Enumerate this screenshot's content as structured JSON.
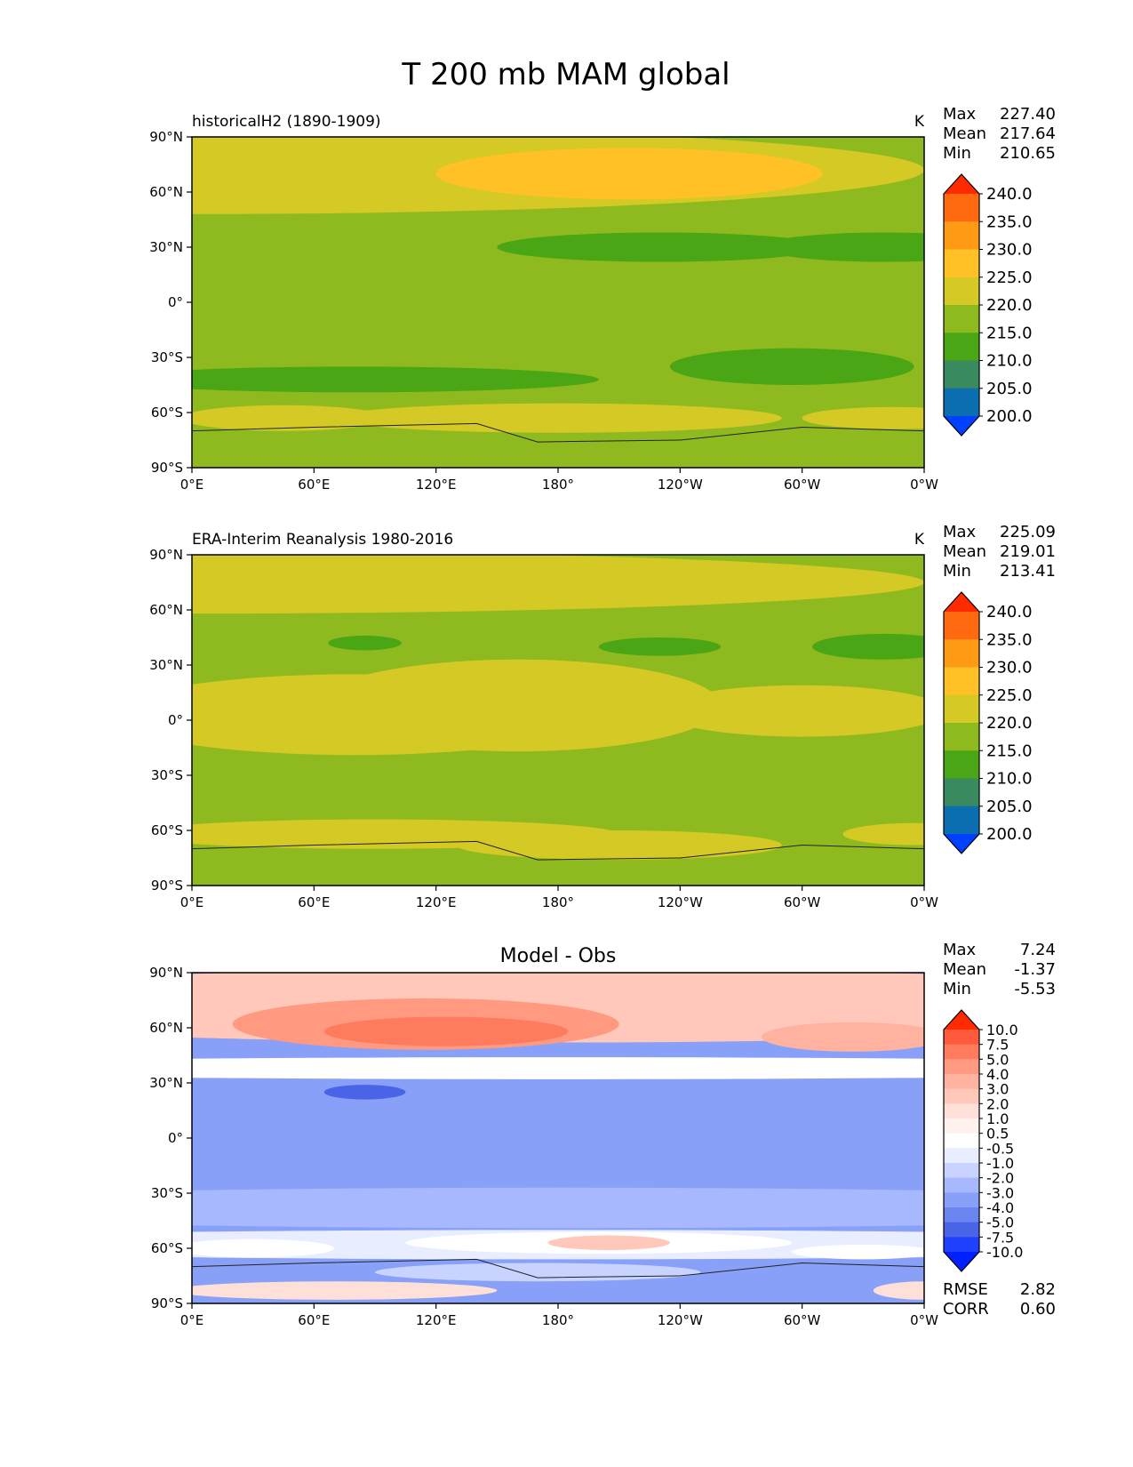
{
  "figure": {
    "title": "T 200 mb MAM global"
  },
  "chart_data": [
    {
      "type": "heatmap",
      "name": "model",
      "title_left": "historicalH2 (1890-1909)",
      "title_center": "",
      "units": "K",
      "stats": [
        {
          "label": "Max",
          "value": "227.40"
        },
        {
          "label": "Mean",
          "value": "217.64"
        },
        {
          "label": "Min",
          "value": "210.65"
        }
      ],
      "extra_stats": [],
      "xticks": [
        "0°E",
        "60°E",
        "120°E",
        "180°",
        "120°W",
        "60°W",
        "0°W"
      ],
      "yticks": [
        "90°N",
        "60°N",
        "30°N",
        "0°",
        "30°S",
        "60°S",
        "90°S"
      ],
      "xlim": [
        0,
        360
      ],
      "ylim": [
        -90,
        90
      ],
      "levels": [
        "240.0",
        "235.0",
        "230.0",
        "225.0",
        "220.0",
        "215.0",
        "210.0",
        "205.0",
        "200.0"
      ],
      "colors": [
        "#ff2a00",
        "#ff6a10",
        "#ff9a15",
        "#ffc125",
        "#d4c925",
        "#8fba1f",
        "#4aa614",
        "#3a8a60",
        "#0a6eb0",
        "#0040ff"
      ],
      "background_class": 5,
      "blobs": [
        {
          "lon": 0,
          "lat": 72,
          "rlon": 360,
          "rlat": 24,
          "c": 4
        },
        {
          "lon": 215,
          "lat": 70,
          "rlon": 95,
          "rlat": 14,
          "c": 3
        },
        {
          "lon": 230,
          "lat": 30,
          "rlon": 80,
          "rlat": 8,
          "c": 6
        },
        {
          "lon": 340,
          "lat": 30,
          "rlon": 60,
          "rlat": 8,
          "c": 6
        },
        {
          "lon": 80,
          "lat": -42,
          "rlon": 120,
          "rlat": 7,
          "c": 6
        },
        {
          "lon": 295,
          "lat": -35,
          "rlon": 60,
          "rlat": 10,
          "c": 6
        },
        {
          "lon": 45,
          "lat": -63,
          "rlon": 50,
          "rlat": 7,
          "c": 4
        },
        {
          "lon": 180,
          "lat": -63,
          "rlon": 110,
          "rlat": 8,
          "c": 4
        },
        {
          "lon": 345,
          "lat": -63,
          "rlon": 45,
          "rlat": 6,
          "c": 4
        }
      ]
    },
    {
      "type": "heatmap",
      "name": "obs",
      "title_left": "ERA-Interim Reanalysis 1980-2016",
      "title_center": "",
      "units": "K",
      "stats": [
        {
          "label": "Max",
          "value": "225.09"
        },
        {
          "label": "Mean",
          "value": "219.01"
        },
        {
          "label": "Min",
          "value": "213.41"
        }
      ],
      "extra_stats": [],
      "xticks": [
        "0°E",
        "60°E",
        "120°E",
        "180°",
        "120°W",
        "60°W",
        "0°W"
      ],
      "yticks": [
        "90°N",
        "60°N",
        "30°N",
        "0°",
        "30°S",
        "60°S",
        "90°S"
      ],
      "xlim": [
        0,
        360
      ],
      "ylim": [
        -90,
        90
      ],
      "levels": [
        "240.0",
        "235.0",
        "230.0",
        "225.0",
        "220.0",
        "215.0",
        "210.0",
        "205.0",
        "200.0"
      ],
      "colors": [
        "#ff2a00",
        "#ff6a10",
        "#ff9a15",
        "#ffc125",
        "#d4c925",
        "#8fba1f",
        "#4aa614",
        "#3a8a60",
        "#0a6eb0",
        "#0040ff"
      ],
      "background_class": 5,
      "blobs": [
        {
          "lon": 0,
          "lat": 75,
          "rlon": 360,
          "rlat": 17,
          "c": 4
        },
        {
          "lon": 80,
          "lat": 3,
          "rlon": 120,
          "rlat": 22,
          "c": 4
        },
        {
          "lon": 160,
          "lat": 8,
          "rlon": 100,
          "rlat": 25,
          "c": 4
        },
        {
          "lon": 300,
          "lat": 5,
          "rlon": 70,
          "rlat": 14,
          "c": 4
        },
        {
          "lon": 85,
          "lat": 42,
          "rlon": 18,
          "rlat": 4,
          "c": 6
        },
        {
          "lon": 230,
          "lat": 40,
          "rlon": 30,
          "rlat": 5,
          "c": 6
        },
        {
          "lon": 340,
          "lat": 40,
          "rlon": 35,
          "rlat": 7,
          "c": 6
        },
        {
          "lon": 90,
          "lat": -62,
          "rlon": 120,
          "rlat": 8,
          "c": 4
        },
        {
          "lon": 210,
          "lat": -68,
          "rlon": 80,
          "rlat": 8,
          "c": 4
        },
        {
          "lon": 355,
          "lat": -62,
          "rlon": 35,
          "rlat": 6,
          "c": 4
        }
      ]
    },
    {
      "type": "heatmap",
      "name": "difference",
      "title_left": "",
      "title_center": "Model - Obs",
      "units": "",
      "stats": [
        {
          "label": "Max",
          "value": "7.24"
        },
        {
          "label": "Mean",
          "value": "-1.37"
        },
        {
          "label": "Min",
          "value": "-5.53"
        }
      ],
      "extra_stats": [
        {
          "label": "RMSE",
          "value": "2.82"
        },
        {
          "label": "CORR",
          "value": "0.60"
        }
      ],
      "xticks": [
        "0°E",
        "60°E",
        "120°E",
        "180°",
        "120°W",
        "60°W",
        "0°W"
      ],
      "yticks": [
        "90°N",
        "60°N",
        "30°N",
        "0°",
        "30°S",
        "60°S",
        "90°S"
      ],
      "xlim": [
        0,
        360
      ],
      "ylim": [
        -90,
        90
      ],
      "levels": [
        "10.0",
        "7.5",
        "5.0",
        "4.0",
        "3.0",
        "2.0",
        "1.0",
        "0.5",
        "-0.5",
        "-1.0",
        "-2.0",
        "-3.0",
        "-4.0",
        "-5.0",
        "-7.5",
        "-10.0"
      ],
      "colors": [
        "#ff2a00",
        "#ff5a3c",
        "#ff7b5e",
        "#ff9a80",
        "#ffb2a0",
        "#ffc8ba",
        "#ffe0d8",
        "#fff2ee",
        "#ffffff",
        "#e8edff",
        "#c8d4ff",
        "#a8b8ff",
        "#88a0f8",
        "#6a84f0",
        "#4a64e8",
        "#2040ff",
        "#0020ff"
      ],
      "background_class": 12,
      "blobs": [
        {
          "lon": 180,
          "lat": 72,
          "rlon": 360,
          "rlat": 20,
          "c": 5
        },
        {
          "lon": 115,
          "lat": 62,
          "rlon": 95,
          "rlat": 14,
          "c": 3
        },
        {
          "lon": 125,
          "lat": 58,
          "rlon": 60,
          "rlat": 8,
          "c": 2
        },
        {
          "lon": 325,
          "lat": 55,
          "rlon": 45,
          "rlat": 8,
          "c": 4
        },
        {
          "lon": 180,
          "lat": 38,
          "rlon": 360,
          "rlat": 6,
          "c": 8
        },
        {
          "lon": 85,
          "lat": 25,
          "rlon": 20,
          "rlat": 4,
          "c": 14
        },
        {
          "lon": 180,
          "lat": -38,
          "rlon": 360,
          "rlat": 11,
          "c": 11
        },
        {
          "lon": 180,
          "lat": -58,
          "rlon": 360,
          "rlat": 8,
          "c": 9
        },
        {
          "lon": 200,
          "lat": -57,
          "rlon": 95,
          "rlat": 6,
          "c": 8
        },
        {
          "lon": 205,
          "lat": -57,
          "rlon": 30,
          "rlat": 4,
          "c": 5
        },
        {
          "lon": 30,
          "lat": -60,
          "rlon": 40,
          "rlat": 5,
          "c": 8
        },
        {
          "lon": 330,
          "lat": -62,
          "rlon": 35,
          "rlat": 4,
          "c": 8
        },
        {
          "lon": 170,
          "lat": -73,
          "rlon": 80,
          "rlat": 5,
          "c": 10
        },
        {
          "lon": 70,
          "lat": -83,
          "rlon": 80,
          "rlat": 5,
          "c": 6
        },
        {
          "lon": 360,
          "lat": -83,
          "rlon": 25,
          "rlat": 5,
          "c": 6
        }
      ]
    }
  ]
}
